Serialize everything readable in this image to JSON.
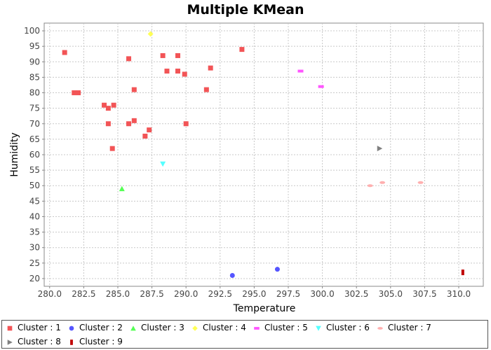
{
  "chart_data": {
    "type": "scatter",
    "title": "Multiple KMean",
    "xlabel": "Temperature",
    "ylabel": "Humidity",
    "xlim": [
      279.6,
      311.8
    ],
    "ylim": [
      17.5,
      102.5
    ],
    "xticks": [
      280.0,
      282.5,
      285.0,
      287.5,
      290.0,
      292.5,
      295.0,
      297.5,
      300.0,
      302.5,
      305.0,
      307.5,
      310.0
    ],
    "xtick_labels": [
      "280.0",
      "282.5",
      "285.0",
      "287.5",
      "290.0",
      "292.5",
      "295.0",
      "297.5",
      "300.0",
      "302.5",
      "305.0",
      "307.5",
      "310.0"
    ],
    "yticks": [
      20,
      25,
      30,
      35,
      40,
      45,
      50,
      55,
      60,
      65,
      70,
      75,
      80,
      85,
      90,
      95,
      100
    ],
    "grid": true,
    "legend_position": "bottom",
    "series": [
      {
        "name": "Cluster : 1",
        "color": "#f25456",
        "marker": "square",
        "points": [
          [
            281.1,
            93
          ],
          [
            281.8,
            80
          ],
          [
            282.1,
            80
          ],
          [
            284.0,
            76
          ],
          [
            284.3,
            75
          ],
          [
            284.7,
            76
          ],
          [
            284.3,
            70
          ],
          [
            284.6,
            62
          ],
          [
            285.8,
            91
          ],
          [
            285.8,
            70
          ],
          [
            286.2,
            71
          ],
          [
            286.2,
            81
          ],
          [
            287.0,
            66
          ],
          [
            287.3,
            68
          ],
          [
            288.3,
            92
          ],
          [
            288.6,
            87
          ],
          [
            289.4,
            92
          ],
          [
            289.4,
            87
          ],
          [
            289.9,
            86
          ],
          [
            290.0,
            70
          ],
          [
            291.5,
            81
          ],
          [
            291.8,
            88
          ],
          [
            294.1,
            94
          ]
        ]
      },
      {
        "name": "Cluster : 2",
        "color": "#5555ff",
        "marker": "circle",
        "points": [
          [
            293.4,
            21
          ],
          [
            296.7,
            23
          ]
        ]
      },
      {
        "name": "Cluster : 3",
        "color": "#55ff55",
        "marker": "triangle-up",
        "points": [
          [
            285.3,
            49
          ]
        ]
      },
      {
        "name": "Cluster : 4",
        "color": "#ffff55",
        "marker": "diamond",
        "points": [
          [
            287.4,
            99
          ]
        ]
      },
      {
        "name": "Cluster : 5",
        "color": "#ff55ff",
        "marker": "hbar",
        "points": [
          [
            298.4,
            87
          ],
          [
            299.9,
            82
          ]
        ]
      },
      {
        "name": "Cluster : 6",
        "color": "#55ffff",
        "marker": "triangle-down",
        "points": [
          [
            288.3,
            57
          ]
        ]
      },
      {
        "name": "Cluster : 7",
        "color": "#ffafaf",
        "marker": "ellipse",
        "points": [
          [
            303.5,
            50
          ],
          [
            304.4,
            51
          ],
          [
            307.2,
            51
          ]
        ]
      },
      {
        "name": "Cluster : 8",
        "color": "#808080",
        "marker": "triangle-right",
        "points": [
          [
            304.2,
            62
          ]
        ]
      },
      {
        "name": "Cluster : 9",
        "color": "#c00000",
        "marker": "vbar",
        "points": [
          [
            310.3,
            22
          ]
        ]
      }
    ]
  }
}
